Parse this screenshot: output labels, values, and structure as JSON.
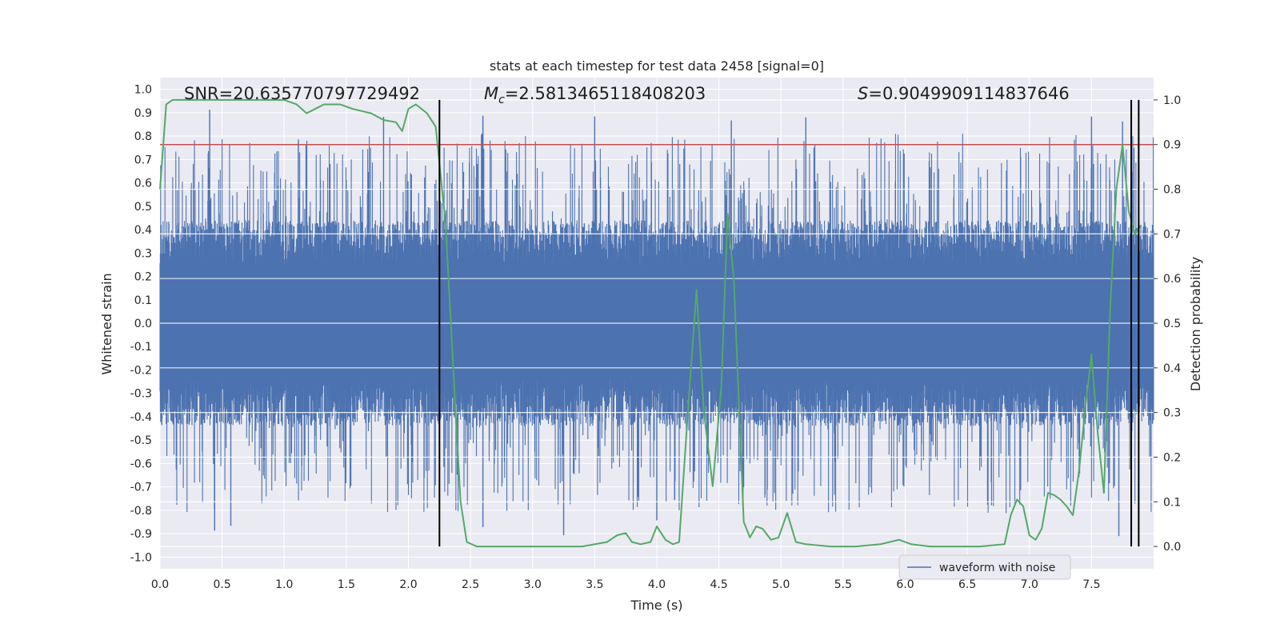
{
  "chart_data": {
    "type": "line",
    "title": "stats at each timestep for test data 2458 [signal=0]",
    "xlabel": "Time (s)",
    "ylabel": "Whitened strain",
    "y2label": "Detection probability",
    "xlim": [
      0.0,
      8.0
    ],
    "ylim": [
      -1.05,
      1.05
    ],
    "y2lim": [
      -0.05,
      1.05
    ],
    "x_ticks": [
      "0.0",
      "0.5",
      "1.0",
      "1.5",
      "2.0",
      "2.5",
      "3.0",
      "3.5",
      "4.0",
      "4.5",
      "5.0",
      "5.5",
      "6.0",
      "6.5",
      "7.0",
      "7.5"
    ],
    "y_ticks": [
      "1.0",
      "0.9",
      "0.8",
      "0.7",
      "0.6",
      "0.5",
      "0.4",
      "0.3",
      "0.2",
      "0.1",
      "0.0",
      "-0.1",
      "-0.2",
      "-0.3",
      "-0.4",
      "-0.5",
      "-0.6",
      "-0.7",
      "-0.8",
      "-0.9",
      "-1.0"
    ],
    "y2_ticks": [
      "1.0",
      "0.9",
      "0.8",
      "0.7",
      "0.6",
      "0.5",
      "0.4",
      "0.3",
      "0.2",
      "0.1",
      "0.0"
    ],
    "annotations": {
      "snr": "SNR=20.635770797729492",
      "mc_symbol": "M",
      "mc_sub": "c",
      "mc_value": "=2.5813465118408203",
      "s_symbol": "S",
      "s_value": "=0.9049909114837646"
    },
    "threshold_line": {
      "y2": 0.9,
      "color": "#c44e52"
    },
    "vertical_lines_x": [
      2.25,
      7.82,
      7.88
    ],
    "waveform": {
      "name": "waveform with noise",
      "color": "#4c72b0",
      "typical_amplitude": 0.4,
      "peak_amplitude": 0.95,
      "max_peaks_x": [
        0.4,
        1.8,
        2.6,
        3.5,
        4.6,
        5.2,
        7.5,
        7.75
      ],
      "min_peaks_x": [
        0.44,
        0.57,
        2.6,
        3.25,
        4.0,
        7.72
      ]
    },
    "detection_probability": {
      "color": "#55a868",
      "x": [
        0.0,
        0.05,
        0.1,
        0.2,
        0.4,
        0.6,
        0.8,
        1.0,
        1.1,
        1.18,
        1.25,
        1.32,
        1.45,
        1.55,
        1.7,
        1.8,
        1.9,
        1.95,
        2.0,
        2.06,
        2.15,
        2.22,
        2.3,
        2.38,
        2.42,
        2.47,
        2.55,
        2.65,
        2.8,
        3.0,
        3.2,
        3.4,
        3.6,
        3.68,
        3.75,
        3.8,
        3.87,
        3.95,
        4.0,
        4.07,
        4.13,
        4.18,
        4.25,
        4.32,
        4.38,
        4.45,
        4.52,
        4.57,
        4.62,
        4.7,
        4.75,
        4.8,
        4.85,
        4.92,
        4.98,
        5.05,
        5.12,
        5.2,
        5.4,
        5.6,
        5.8,
        5.95,
        6.05,
        6.2,
        6.4,
        6.6,
        6.8,
        6.85,
        6.9,
        6.95,
        7.0,
        7.05,
        7.1,
        7.15,
        7.2,
        7.25,
        7.3,
        7.35,
        7.4,
        7.45,
        7.5,
        7.55,
        7.6,
        7.65,
        7.7,
        7.75,
        7.8,
        7.85,
        7.9
      ],
      "y": [
        0.8,
        0.99,
        1.0,
        1.0,
        1.0,
        1.0,
        1.0,
        1.0,
        0.99,
        0.97,
        0.98,
        0.99,
        0.99,
        0.98,
        0.97,
        0.955,
        0.95,
        0.93,
        0.98,
        0.99,
        0.97,
        0.94,
        0.72,
        0.3,
        0.1,
        0.01,
        0.0,
        0.0,
        0.0,
        0.0,
        0.0,
        0.0,
        0.01,
        0.025,
        0.03,
        0.01,
        0.005,
        0.01,
        0.045,
        0.015,
        0.005,
        0.01,
        0.3,
        0.575,
        0.3,
        0.135,
        0.36,
        0.745,
        0.6,
        0.055,
        0.02,
        0.045,
        0.04,
        0.015,
        0.02,
        0.075,
        0.01,
        0.005,
        0.0,
        0.0,
        0.005,
        0.015,
        0.005,
        0.0,
        0.0,
        0.0,
        0.005,
        0.07,
        0.105,
        0.09,
        0.025,
        0.015,
        0.04,
        0.12,
        0.115,
        0.105,
        0.09,
        0.07,
        0.17,
        0.31,
        0.43,
        0.255,
        0.12,
        0.53,
        0.8,
        0.9,
        0.75,
        0.7,
        0.72
      ]
    }
  },
  "legend": {
    "label": "waveform with noise"
  }
}
